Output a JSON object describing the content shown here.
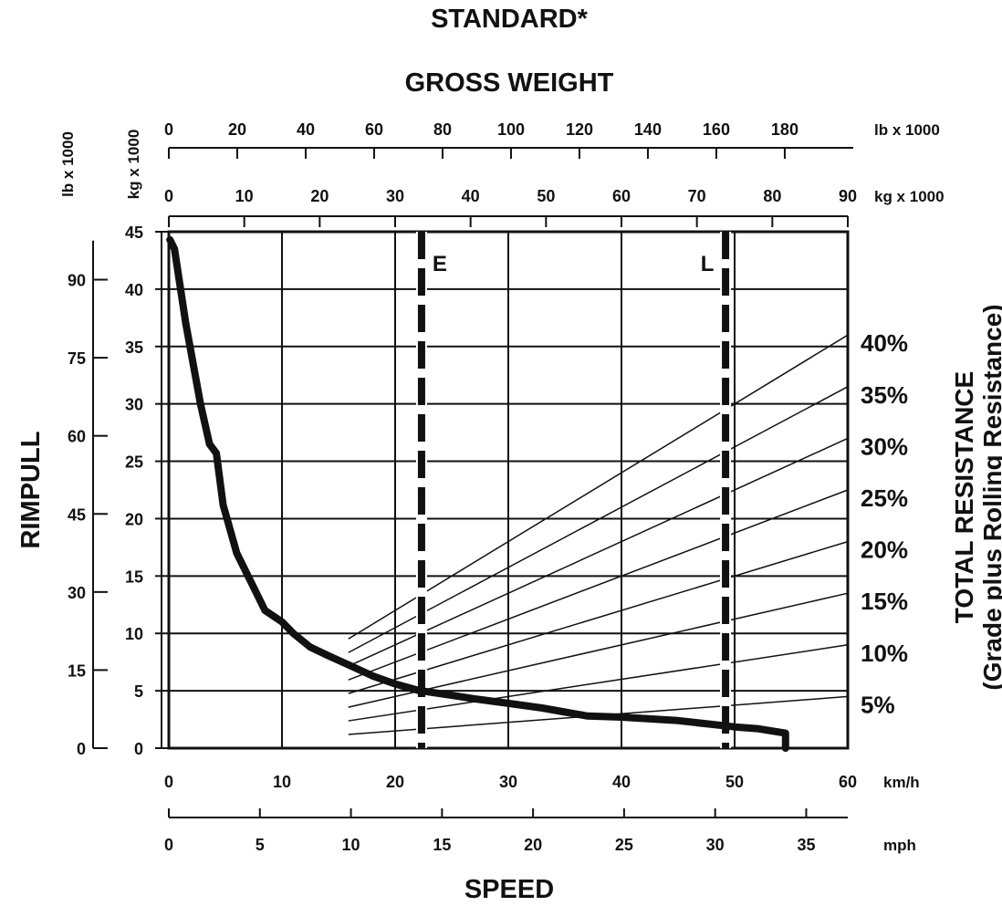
{
  "chart_data": {
    "type": "line",
    "title": "STANDARD*",
    "subtitle": "GROSS WEIGHT",
    "xlabel": "SPEED",
    "ylabel": "RIMPULL",
    "right_label": "TOTAL RESISTANCE",
    "right_label_sub": "(Grade plus Rolling Resistance)",
    "x_kmh": {
      "unit": "km/h",
      "ticks": [
        0,
        10,
        20,
        30,
        40,
        50,
        60
      ],
      "range": [
        0,
        60
      ]
    },
    "x_mph": {
      "unit": "mph",
      "ticks": [
        0,
        5,
        10,
        15,
        20,
        25,
        30,
        35
      ],
      "range": [
        0,
        37.28
      ]
    },
    "y_kg": {
      "unit": "kg x 1000",
      "ticks": [
        0,
        5,
        10,
        15,
        20,
        25,
        30,
        35,
        40,
        45
      ],
      "range": [
        0,
        45
      ]
    },
    "y_lb": {
      "unit": "lb x 1000",
      "ticks": [
        0,
        15,
        30,
        45,
        60,
        75,
        90
      ]
    },
    "gw_kg": {
      "unit": "kg x 1000",
      "ticks": [
        0,
        10,
        20,
        30,
        40,
        50,
        60,
        70,
        80,
        90
      ],
      "range": [
        0,
        90
      ]
    },
    "gw_lb": {
      "unit": "lb x 1000",
      "ticks": [
        0,
        20,
        40,
        60,
        80,
        100,
        120,
        140,
        160,
        180
      ]
    },
    "grid": true,
    "rimpull_curve": {
      "x": [
        0.1,
        0.5,
        1.5,
        2.8,
        3.6,
        4.2,
        4.8,
        6.0,
        7.5,
        8.5,
        10.0,
        11.0,
        12.5,
        14.0,
        16.0,
        18.0,
        20.0,
        22.0,
        23.0,
        25.0,
        27.0,
        30.0,
        33.0,
        37.0,
        40.0,
        45.0,
        50.0,
        52.0,
        54.5,
        54.5
      ],
      "y": [
        44.3,
        43.5,
        37.0,
        30.0,
        26.5,
        25.7,
        21.2,
        17.0,
        14.0,
        12.0,
        11.0,
        10.0,
        8.8,
        8.1,
        7.2,
        6.3,
        5.6,
        5.05,
        4.9,
        4.6,
        4.3,
        3.9,
        3.5,
        2.8,
        2.7,
        2.4,
        1.85,
        1.7,
        1.3,
        0.0
      ]
    },
    "vehicle_lines": [
      {
        "label": "E",
        "gross_weight_kg_x1000": 33.5
      },
      {
        "label": "L",
        "gross_weight_kg_x1000": 73.8
      }
    ],
    "resistance": {
      "values": [
        "5%",
        "10%",
        "15%",
        "20%",
        "25%",
        "30%",
        "35%",
        "40%"
      ],
      "fractions": [
        0.05,
        0.1,
        0.15,
        0.2,
        0.25,
        0.3,
        0.35,
        0.4
      ]
    }
  }
}
